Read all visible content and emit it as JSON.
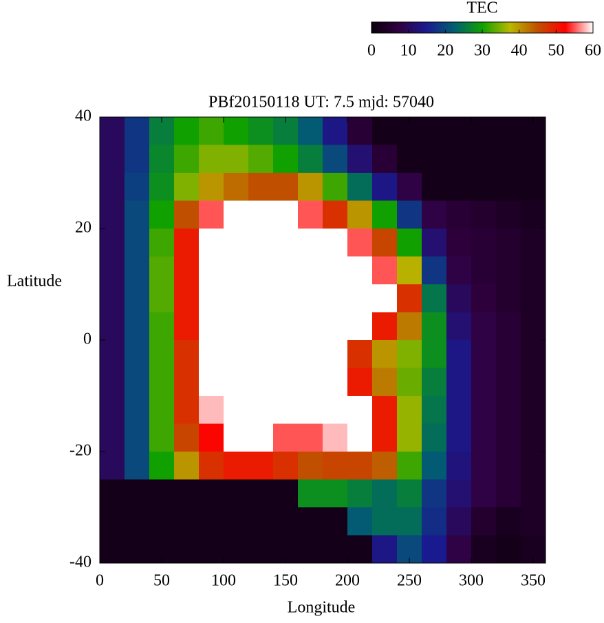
{
  "chart_data": {
    "type": "heatmap",
    "title": "PBf20150118  UT: 7.5  mjd: 57040",
    "x_label": "Longitude",
    "y_label": "Latitude",
    "colorbar_label": "TEC",
    "xlim": [
      0,
      360
    ],
    "xticks": [
      0,
      50,
      100,
      150,
      200,
      250,
      300,
      350
    ],
    "ylim": [
      -40,
      40
    ],
    "yticks": [
      -40,
      -20,
      0,
      20,
      40
    ],
    "clim": [
      0,
      60
    ],
    "cticks": [
      0,
      10,
      20,
      30,
      40,
      50,
      60
    ],
    "colormap": [
      "#0a000a",
      "#300040",
      "#1a1a90",
      "#006070",
      "#10a000",
      "#b8b800",
      "#c05000",
      "#ff0000",
      "#ffffff"
    ],
    "x": [
      10,
      30,
      50,
      70,
      90,
      110,
      130,
      150,
      170,
      190,
      210,
      230,
      250,
      270,
      290,
      310,
      330,
      350
    ],
    "y": [
      37.5,
      32.5,
      27.5,
      22.5,
      17.5,
      12.5,
      7.5,
      2.5,
      -2.5,
      -7.5,
      -12.5,
      -17.5,
      -22.5,
      -27.5,
      -32.5,
      -37.5
    ],
    "z": [
      [
        10,
        18,
        26,
        30,
        32,
        30,
        28,
        26,
        22,
        14,
        6,
        2,
        2,
        2,
        2,
        2,
        2,
        2
      ],
      [
        10,
        18,
        27,
        32,
        35,
        35,
        33,
        30,
        26,
        20,
        12,
        6,
        2,
        2,
        2,
        2,
        2,
        2
      ],
      [
        10,
        19,
        28,
        35,
        40,
        43,
        45,
        45,
        40,
        32,
        24,
        14,
        8,
        2,
        2,
        2,
        2,
        2
      ],
      [
        10,
        20,
        30,
        45,
        55,
        60,
        60,
        60,
        55,
        48,
        40,
        30,
        18,
        8,
        6,
        5,
        4,
        3
      ],
      [
        10,
        20,
        32,
        50,
        60,
        60,
        60,
        60,
        60,
        60,
        55,
        46,
        30,
        12,
        7,
        6,
        5,
        4
      ],
      [
        10,
        20,
        33,
        50,
        60,
        60,
        60,
        60,
        60,
        60,
        60,
        55,
        38,
        18,
        8,
        6,
        5,
        4
      ],
      [
        10,
        20,
        33,
        50,
        60,
        60,
        60,
        60,
        60,
        60,
        60,
        60,
        48,
        25,
        10,
        7,
        5,
        4
      ],
      [
        10,
        20,
        32,
        50,
        60,
        60,
        60,
        60,
        60,
        60,
        60,
        50,
        42,
        28,
        12,
        8,
        6,
        4
      ],
      [
        10,
        20,
        32,
        48,
        60,
        60,
        60,
        60,
        60,
        60,
        48,
        40,
        35,
        28,
        14,
        8,
        6,
        4
      ],
      [
        10,
        20,
        32,
        48,
        60,
        60,
        60,
        60,
        60,
        60,
        50,
        42,
        34,
        26,
        14,
        8,
        6,
        4
      ],
      [
        10,
        20,
        32,
        48,
        58,
        60,
        60,
        60,
        60,
        60,
        60,
        50,
        36,
        25,
        14,
        8,
        6,
        4
      ],
      [
        10,
        20,
        32,
        46,
        52,
        60,
        60,
        55,
        55,
        58,
        60,
        50,
        36,
        24,
        14,
        8,
        6,
        4
      ],
      [
        10,
        20,
        30,
        40,
        48,
        50,
        50,
        48,
        45,
        46,
        46,
        44,
        32,
        22,
        13,
        8,
        6,
        4
      ],
      [
        2,
        2,
        2,
        2,
        2,
        2,
        2,
        2,
        28,
        28,
        26,
        24,
        26,
        18,
        12,
        8,
        6,
        4
      ],
      [
        2,
        2,
        2,
        2,
        2,
        2,
        2,
        2,
        2,
        2,
        22,
        24,
        24,
        17,
        10,
        5,
        3,
        4
      ],
      [
        2,
        2,
        2,
        2,
        2,
        2,
        2,
        2,
        2,
        2,
        2,
        14,
        20,
        15,
        8,
        3,
        2,
        3
      ]
    ]
  }
}
